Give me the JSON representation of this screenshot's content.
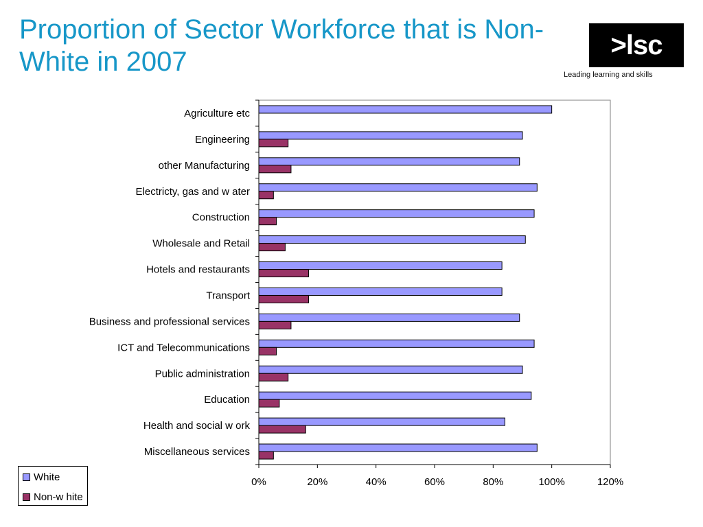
{
  "header": {
    "title": "Proportion of Sector Workforce that is Non-White in 2007",
    "logo_text": ">lsc",
    "logo_tagline": "Leading learning and skills"
  },
  "colors": {
    "title": "#1797c8",
    "white_series": "#9999ff",
    "nonwhite_series": "#993366"
  },
  "chart_data": {
    "type": "bar",
    "orientation": "horizontal",
    "title": "",
    "xlabel": "",
    "ylabel": "",
    "xlim": [
      0,
      120
    ],
    "x_ticks": [
      "0%",
      "20%",
      "40%",
      "60%",
      "80%",
      "100%",
      "120%"
    ],
    "grid": false,
    "legend_position": "bottom-left",
    "categories": [
      "Agriculture etc",
      "Engineering",
      "other Manufacturing",
      "Electricty, gas and w ater",
      "Construction",
      "Wholesale and Retail",
      "Hotels and restaurants",
      "Transport",
      "Business and professional services",
      "ICT and Telecommunications",
      "Public administration",
      "Education",
      "Health and social w ork",
      "Miscellaneous services"
    ],
    "series": [
      {
        "name": "White",
        "color": "#9999ff",
        "values": [
          100,
          90,
          89,
          95,
          94,
          91,
          83,
          83,
          89,
          94,
          90,
          93,
          84,
          95
        ]
      },
      {
        "name": "Non-w hite",
        "color": "#993366",
        "values": [
          0,
          10,
          11,
          5,
          6,
          9,
          17,
          17,
          11,
          6,
          10,
          7,
          16,
          5
        ]
      }
    ]
  }
}
